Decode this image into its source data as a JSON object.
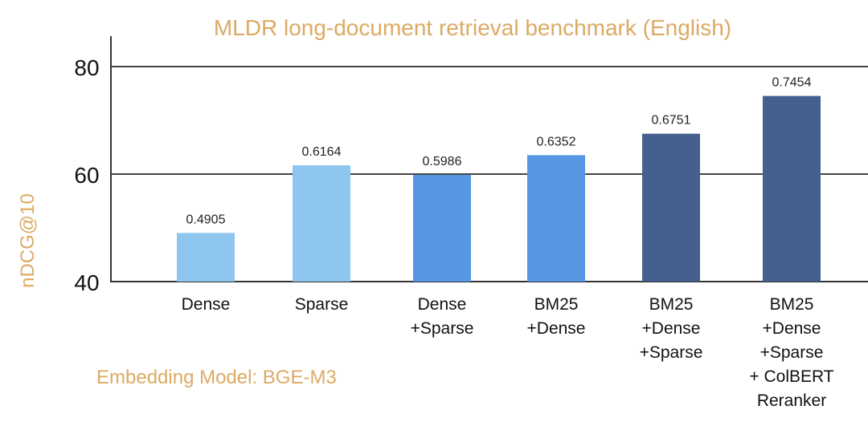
{
  "chart_data": {
    "type": "bar",
    "title": "MLDR long-document retrieval benchmark (English)",
    "xlabel": "",
    "ylabel": "nDCG@10",
    "ylim": [
      40,
      80
    ],
    "yticks": [
      40,
      60,
      80
    ],
    "grid": true,
    "categories": [
      "Dense",
      "Sparse",
      "Dense\n+Sparse",
      "BM25\n+Dense",
      "BM25\n+Dense\n+Sparse",
      "BM25\n+Dense\n+Sparse\n+ ColBERT\nReranker"
    ],
    "values": [
      49.05,
      61.64,
      59.86,
      63.52,
      67.51,
      74.54
    ],
    "data_labels": [
      "0.4905",
      "0.6164",
      "0.5986",
      "0.6352",
      "0.6751",
      "0.7454"
    ],
    "bar_colors": [
      "#8ec6ef",
      "#8ec6ef",
      "#5597e2",
      "#5597e2",
      "#44608e",
      "#44608e"
    ],
    "annotation": "Embedding Model: BGE-M3"
  }
}
